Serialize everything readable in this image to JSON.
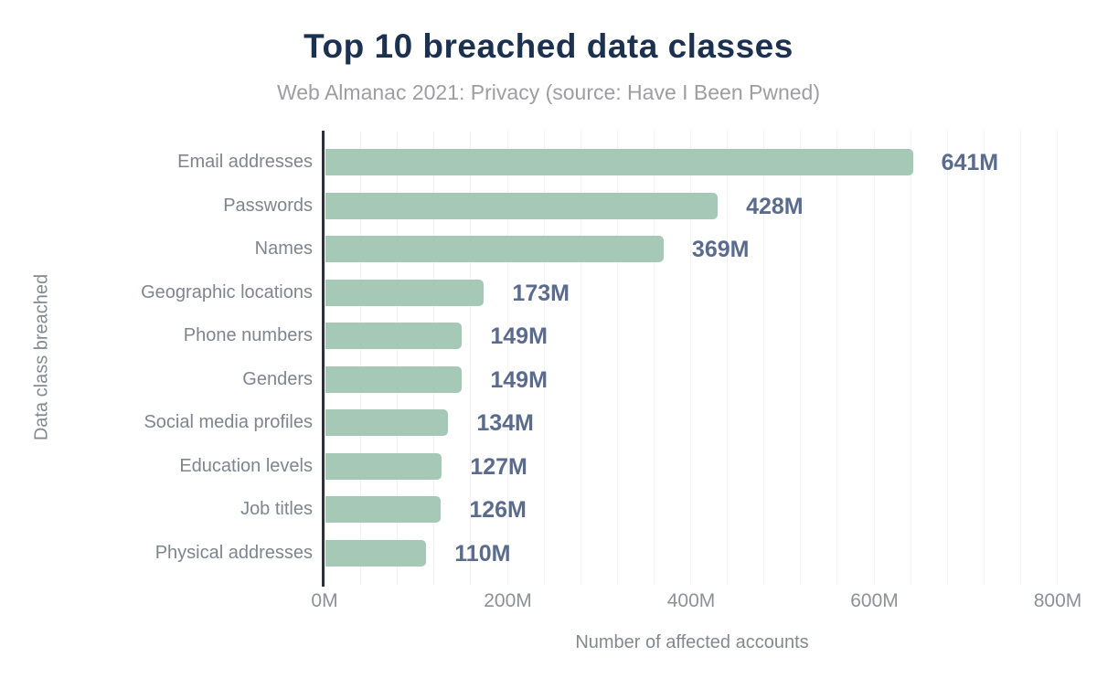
{
  "chart_data": {
    "type": "bar",
    "orientation": "horizontal",
    "title": "Top 10 breached data classes",
    "subtitle": "Web Almanac 2021: Privacy (source: Have I Been Pwned)",
    "xlabel": "Number of affected accounts",
    "ylabel": "Data class breached",
    "xlim": [
      0,
      800
    ],
    "unit": "M",
    "x_ticks": [
      {
        "value": 0,
        "label": "0M"
      },
      {
        "value": 200,
        "label": "200M"
      },
      {
        "value": 400,
        "label": "400M"
      },
      {
        "value": 600,
        "label": "600M"
      },
      {
        "value": 800,
        "label": "800M"
      }
    ],
    "grid": {
      "show": true,
      "interval": 40
    },
    "categories": [
      "Email addresses",
      "Passwords",
      "Names",
      "Geographic locations",
      "Phone numbers",
      "Genders",
      "Social media profiles",
      "Education levels",
      "Job titles",
      "Physical addresses"
    ],
    "values": [
      641,
      428,
      369,
      173,
      149,
      149,
      134,
      127,
      126,
      110
    ],
    "value_labels": [
      "641M",
      "428M",
      "369M",
      "173M",
      "149M",
      "149M",
      "134M",
      "127M",
      "126M",
      "110M"
    ],
    "colors": {
      "bar": "#a6c8b7",
      "value_label": "#5a6b8e",
      "title": "#1c3150",
      "subtitle": "#9e9ea2",
      "category_label": "#7f858e",
      "tick_label": "#8c9198",
      "axis_title": "#84888f",
      "gridline": "#f2f2f2",
      "axis_line": "#2e3236",
      "background": "#ffffff"
    }
  }
}
